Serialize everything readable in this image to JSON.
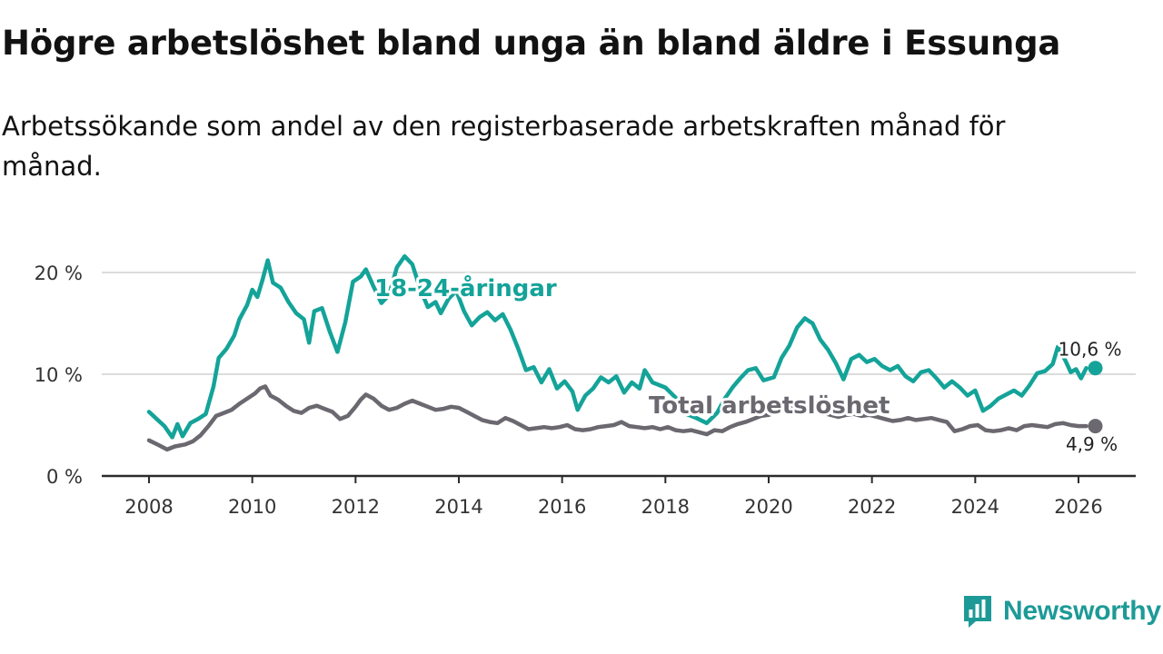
{
  "title": "Högre arbetslöshet bland unga än bland äldre i Essunga",
  "subtitle": "Arbetssökande som andel av den registerbaserade arbetskraften månad för månad.",
  "brand": {
    "name": "Newsworthy",
    "icon": "newsworthy-logo-icon"
  },
  "colors": {
    "youth": "#14a399",
    "total": "#6b6870",
    "grid": "#dcdcdc",
    "axis": "#2b2b2b"
  },
  "chart_data": {
    "type": "line",
    "ylim": [
      0,
      20
    ],
    "yticks": [
      0,
      10,
      20
    ],
    "ytick_labels": [
      "0 %",
      "10 %",
      "20 %"
    ],
    "xlim": [
      2008,
      2026.7
    ],
    "xticks": [
      2008,
      2010,
      2012,
      2014,
      2016,
      2018,
      2020,
      2022,
      2024,
      2026
    ],
    "xtick_labels": [
      "2008",
      "2010",
      "2012",
      "2014",
      "2016",
      "2018",
      "2020",
      "2022",
      "2024",
      "2026"
    ],
    "series": [
      {
        "name": "18-24-åringar",
        "label": "18-24-åringar",
        "end_label": "10,6 %",
        "points": [
          [
            2008.0,
            6.3
          ],
          [
            2008.15,
            5.6
          ],
          [
            2008.3,
            4.9
          ],
          [
            2008.45,
            3.8
          ],
          [
            2008.55,
            5.1
          ],
          [
            2008.65,
            3.9
          ],
          [
            2008.8,
            5.2
          ],
          [
            2008.95,
            5.6
          ],
          [
            2009.1,
            6.1
          ],
          [
            2009.25,
            8.8
          ],
          [
            2009.35,
            11.6
          ],
          [
            2009.5,
            12.5
          ],
          [
            2009.65,
            13.8
          ],
          [
            2009.75,
            15.4
          ],
          [
            2009.9,
            16.8
          ],
          [
            2010.0,
            18.3
          ],
          [
            2010.1,
            17.6
          ],
          [
            2010.2,
            19.3
          ],
          [
            2010.3,
            21.2
          ],
          [
            2010.4,
            19.0
          ],
          [
            2010.55,
            18.5
          ],
          [
            2010.7,
            17.1
          ],
          [
            2010.85,
            16.0
          ],
          [
            2011.0,
            15.4
          ],
          [
            2011.1,
            13.1
          ],
          [
            2011.2,
            16.2
          ],
          [
            2011.35,
            16.5
          ],
          [
            2011.5,
            14.2
          ],
          [
            2011.65,
            12.2
          ],
          [
            2011.8,
            15.1
          ],
          [
            2011.95,
            19.1
          ],
          [
            2012.1,
            19.6
          ],
          [
            2012.2,
            20.3
          ],
          [
            2012.35,
            18.6
          ],
          [
            2012.5,
            17.0
          ],
          [
            2012.65,
            17.8
          ],
          [
            2012.8,
            20.5
          ],
          [
            2012.95,
            21.6
          ],
          [
            2013.1,
            20.8
          ],
          [
            2013.25,
            18.4
          ],
          [
            2013.4,
            16.6
          ],
          [
            2013.55,
            17.1
          ],
          [
            2013.65,
            16.0
          ],
          [
            2013.8,
            17.4
          ],
          [
            2013.95,
            18.2
          ],
          [
            2014.1,
            16.2
          ],
          [
            2014.25,
            14.8
          ],
          [
            2014.4,
            15.6
          ],
          [
            2014.55,
            16.1
          ],
          [
            2014.7,
            15.3
          ],
          [
            2014.85,
            15.9
          ],
          [
            2015.0,
            14.4
          ],
          [
            2015.15,
            12.5
          ],
          [
            2015.3,
            10.4
          ],
          [
            2015.45,
            10.7
          ],
          [
            2015.6,
            9.2
          ],
          [
            2015.75,
            10.5
          ],
          [
            2015.9,
            8.6
          ],
          [
            2016.05,
            9.3
          ],
          [
            2016.2,
            8.3
          ],
          [
            2016.3,
            6.5
          ],
          [
            2016.45,
            7.9
          ],
          [
            2016.6,
            8.6
          ],
          [
            2016.75,
            9.7
          ],
          [
            2016.9,
            9.2
          ],
          [
            2017.05,
            9.8
          ],
          [
            2017.2,
            8.2
          ],
          [
            2017.35,
            9.2
          ],
          [
            2017.5,
            8.6
          ],
          [
            2017.6,
            10.4
          ],
          [
            2017.75,
            9.2
          ],
          [
            2018.0,
            8.7
          ],
          [
            2018.2,
            7.7
          ],
          [
            2018.4,
            6.1
          ],
          [
            2018.6,
            5.7
          ],
          [
            2018.8,
            5.2
          ],
          [
            2019.0,
            6.2
          ],
          [
            2019.15,
            7.6
          ],
          [
            2019.3,
            8.7
          ],
          [
            2019.45,
            9.6
          ],
          [
            2019.6,
            10.4
          ],
          [
            2019.75,
            10.6
          ],
          [
            2019.9,
            9.4
          ],
          [
            2020.1,
            9.7
          ],
          [
            2020.25,
            11.6
          ],
          [
            2020.4,
            12.8
          ],
          [
            2020.55,
            14.6
          ],
          [
            2020.7,
            15.5
          ],
          [
            2020.85,
            15.0
          ],
          [
            2021.0,
            13.4
          ],
          [
            2021.15,
            12.4
          ],
          [
            2021.3,
            11.1
          ],
          [
            2021.45,
            9.5
          ],
          [
            2021.6,
            11.5
          ],
          [
            2021.75,
            11.9
          ],
          [
            2021.9,
            11.2
          ],
          [
            2022.05,
            11.5
          ],
          [
            2022.2,
            10.8
          ],
          [
            2022.35,
            10.4
          ],
          [
            2022.5,
            10.8
          ],
          [
            2022.65,
            9.8
          ],
          [
            2022.8,
            9.3
          ],
          [
            2022.95,
            10.2
          ],
          [
            2023.1,
            10.4
          ],
          [
            2023.25,
            9.6
          ],
          [
            2023.4,
            8.7
          ],
          [
            2023.55,
            9.3
          ],
          [
            2023.7,
            8.7
          ],
          [
            2023.85,
            7.9
          ],
          [
            2024.0,
            8.4
          ],
          [
            2024.15,
            6.4
          ],
          [
            2024.3,
            6.9
          ],
          [
            2024.45,
            7.6
          ],
          [
            2024.6,
            8.0
          ],
          [
            2024.75,
            8.4
          ],
          [
            2024.9,
            7.9
          ],
          [
            2025.05,
            8.9
          ],
          [
            2025.2,
            10.1
          ],
          [
            2025.35,
            10.3
          ],
          [
            2025.5,
            11.0
          ],
          [
            2025.6,
            12.7
          ],
          [
            2025.75,
            11.3
          ],
          [
            2025.85,
            10.2
          ],
          [
            2025.95,
            10.5
          ],
          [
            2026.05,
            9.6
          ],
          [
            2026.15,
            10.6
          ]
        ]
      },
      {
        "name": "Total arbetslöshet",
        "label": "Total arbetslöshet",
        "end_label": "4,9 %",
        "points": [
          [
            2008.0,
            3.5
          ],
          [
            2008.2,
            3.0
          ],
          [
            2008.35,
            2.6
          ],
          [
            2008.5,
            2.9
          ],
          [
            2008.7,
            3.1
          ],
          [
            2008.85,
            3.4
          ],
          [
            2009.0,
            4.0
          ],
          [
            2009.15,
            4.9
          ],
          [
            2009.3,
            5.9
          ],
          [
            2009.45,
            6.2
          ],
          [
            2009.6,
            6.5
          ],
          [
            2009.75,
            7.1
          ],
          [
            2009.9,
            7.6
          ],
          [
            2010.05,
            8.1
          ],
          [
            2010.15,
            8.6
          ],
          [
            2010.25,
            8.8
          ],
          [
            2010.35,
            7.9
          ],
          [
            2010.5,
            7.5
          ],
          [
            2010.65,
            6.9
          ],
          [
            2010.8,
            6.4
          ],
          [
            2010.95,
            6.2
          ],
          [
            2011.1,
            6.7
          ],
          [
            2011.25,
            6.9
          ],
          [
            2011.4,
            6.6
          ],
          [
            2011.55,
            6.3
          ],
          [
            2011.7,
            5.6
          ],
          [
            2011.85,
            5.9
          ],
          [
            2012.0,
            6.8
          ],
          [
            2012.1,
            7.5
          ],
          [
            2012.2,
            8.0
          ],
          [
            2012.35,
            7.6
          ],
          [
            2012.5,
            6.9
          ],
          [
            2012.65,
            6.5
          ],
          [
            2012.8,
            6.7
          ],
          [
            2012.95,
            7.1
          ],
          [
            2013.1,
            7.4
          ],
          [
            2013.25,
            7.1
          ],
          [
            2013.4,
            6.8
          ],
          [
            2013.55,
            6.5
          ],
          [
            2013.7,
            6.6
          ],
          [
            2013.85,
            6.8
          ],
          [
            2014.0,
            6.7
          ],
          [
            2014.15,
            6.3
          ],
          [
            2014.3,
            5.9
          ],
          [
            2014.45,
            5.5
          ],
          [
            2014.6,
            5.3
          ],
          [
            2014.75,
            5.2
          ],
          [
            2014.9,
            5.7
          ],
          [
            2015.05,
            5.4
          ],
          [
            2015.2,
            5.0
          ],
          [
            2015.35,
            4.6
          ],
          [
            2015.5,
            4.7
          ],
          [
            2015.65,
            4.8
          ],
          [
            2015.8,
            4.7
          ],
          [
            2015.95,
            4.8
          ],
          [
            2016.1,
            5.0
          ],
          [
            2016.25,
            4.6
          ],
          [
            2016.4,
            4.5
          ],
          [
            2016.55,
            4.6
          ],
          [
            2016.7,
            4.8
          ],
          [
            2016.85,
            4.9
          ],
          [
            2017.0,
            5.0
          ],
          [
            2017.15,
            5.3
          ],
          [
            2017.3,
            4.9
          ],
          [
            2017.45,
            4.8
          ],
          [
            2017.6,
            4.7
          ],
          [
            2017.75,
            4.8
          ],
          [
            2017.9,
            4.6
          ],
          [
            2018.05,
            4.8
          ],
          [
            2018.2,
            4.5
          ],
          [
            2018.35,
            4.4
          ],
          [
            2018.5,
            4.5
          ],
          [
            2018.65,
            4.3
          ],
          [
            2018.8,
            4.1
          ],
          [
            2018.95,
            4.5
          ],
          [
            2019.1,
            4.4
          ],
          [
            2019.25,
            4.8
          ],
          [
            2019.4,
            5.1
          ],
          [
            2019.55,
            5.3
          ],
          [
            2019.7,
            5.6
          ],
          [
            2019.85,
            5.9
          ],
          [
            2020.0,
            6.0
          ],
          [
            2020.15,
            6.3
          ],
          [
            2020.3,
            6.4
          ],
          [
            2020.45,
            6.7
          ],
          [
            2020.6,
            6.9
          ],
          [
            2020.75,
            6.6
          ],
          [
            2020.9,
            6.5
          ],
          [
            2021.05,
            6.2
          ],
          [
            2021.2,
            6.0
          ],
          [
            2021.35,
            5.8
          ],
          [
            2021.5,
            6.0
          ],
          [
            2021.65,
            6.1
          ],
          [
            2021.8,
            5.9
          ],
          [
            2021.95,
            6.0
          ],
          [
            2022.1,
            5.8
          ],
          [
            2022.25,
            5.6
          ],
          [
            2022.4,
            5.4
          ],
          [
            2022.55,
            5.5
          ],
          [
            2022.7,
            5.7
          ],
          [
            2022.85,
            5.5
          ],
          [
            2023.0,
            5.6
          ],
          [
            2023.15,
            5.7
          ],
          [
            2023.3,
            5.5
          ],
          [
            2023.45,
            5.3
          ],
          [
            2023.6,
            4.4
          ],
          [
            2023.75,
            4.6
          ],
          [
            2023.9,
            4.9
          ],
          [
            2024.05,
            5.0
          ],
          [
            2024.2,
            4.5
          ],
          [
            2024.35,
            4.4
          ],
          [
            2024.5,
            4.5
          ],
          [
            2024.65,
            4.7
          ],
          [
            2024.8,
            4.5
          ],
          [
            2024.95,
            4.9
          ],
          [
            2025.1,
            5.0
          ],
          [
            2025.25,
            4.9
          ],
          [
            2025.4,
            4.8
          ],
          [
            2025.55,
            5.1
          ],
          [
            2025.7,
            5.2
          ],
          [
            2025.85,
            5.0
          ],
          [
            2026.0,
            4.9
          ],
          [
            2026.15,
            4.9
          ]
        ]
      }
    ]
  }
}
